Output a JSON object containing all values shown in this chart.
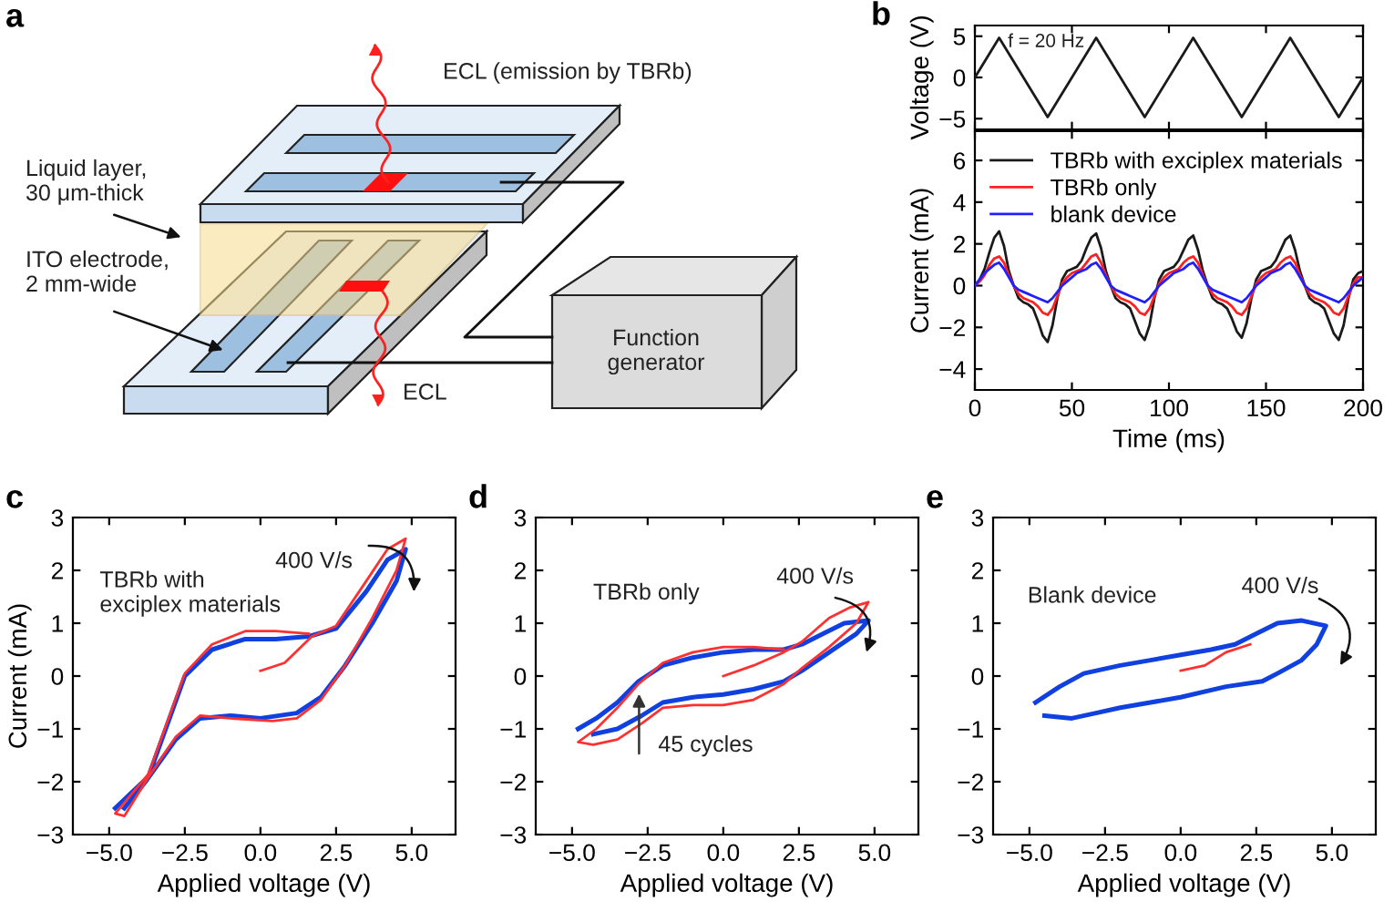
{
  "chart_data": [
    {
      "type": "other",
      "title": "a",
      "annotations": [
        "ECL (emission by TBRb)",
        "Liquid layer,\n30 μm-thick",
        "ITO electrode,\n2 mm-wide",
        "ECL",
        "Function\ngenerator"
      ]
    },
    {
      "type": "line",
      "title": "b",
      "ylabel": "Voltage (V)",
      "annotations": [
        "f = 20 Hz"
      ],
      "xlim": [
        0,
        200
      ],
      "xticks": [
        0,
        50,
        100,
        150,
        200
      ],
      "ylim": [
        -6.3,
        6.3
      ],
      "yticks": [
        {
          "value": -5,
          "label": "−5"
        },
        0,
        5
      ],
      "tick_labels": "y",
      "grid": false,
      "series": [
        {
          "color": "#1a1a1a",
          "x": [
            0,
            12.5,
            37.5,
            62.5,
            87.5,
            112.5,
            137.5,
            162.5,
            187.5,
            200
          ],
          "values": [
            0,
            4.8,
            -4.8,
            4.8,
            -4.8,
            4.8,
            -4.8,
            4.8,
            -4.8,
            0
          ]
        }
      ]
    },
    {
      "type": "line",
      "xlabel": "Time (ms)",
      "ylabel": "Current (mA)",
      "xlim": [
        0,
        200
      ],
      "xticks": [
        0,
        50,
        100,
        150,
        200
      ],
      "ylim": [
        -5,
        7.4
      ],
      "yticks": [
        {
          "value": -4,
          "label": "−4"
        },
        {
          "value": -2,
          "label": "−2"
        },
        0,
        2,
        4,
        6
      ],
      "grid": false,
      "legend": "top right",
      "x": [
        0,
        2.5,
        5,
        7.5,
        10,
        12.5,
        15,
        17.5,
        20,
        22.5,
        25,
        27.5,
        30,
        32.5,
        35,
        37.5,
        40,
        42.5,
        45,
        47.5,
        50,
        52.5,
        55,
        57.5,
        60,
        62.5,
        65,
        67.5,
        70,
        72.5,
        75,
        77.5,
        80,
        82.5,
        85,
        87.5,
        90,
        92.5,
        95,
        97.5,
        100,
        102.5,
        105,
        107.5,
        110,
        112.5,
        115,
        117.5,
        120,
        122.5,
        125,
        127.5,
        130,
        132.5,
        135,
        137.5,
        140,
        142.5,
        145,
        147.5,
        150,
        152.5,
        155,
        157.5,
        160,
        162.5,
        165,
        167.5,
        170,
        172.5,
        175,
        177.5,
        180,
        182.5,
        185,
        187.5,
        190,
        192.5,
        195,
        197.5,
        200
      ],
      "series": [
        {
          "name": "TBRb with exciplex materials",
          "color": "#1a1a1a",
          "values": [
            0.0,
            0.3,
            0.8,
            1.6,
            2.3,
            2.6,
            1.9,
            0.7,
            0.0,
            -0.6,
            -0.8,
            -0.9,
            -1.1,
            -1.7,
            -2.4,
            -2.7,
            -1.9,
            -0.6,
            0.3,
            0.7,
            0.8,
            0.9,
            1.2,
            1.8,
            2.3,
            2.5,
            1.8,
            0.7,
            0.0,
            -0.6,
            -0.8,
            -0.9,
            -1.1,
            -1.7,
            -2.3,
            -2.6,
            -1.9,
            -0.6,
            0.3,
            0.7,
            0.8,
            0.9,
            1.2,
            1.7,
            2.2,
            2.4,
            1.7,
            0.7,
            0.0,
            -0.6,
            -0.8,
            -0.9,
            -1.1,
            -1.6,
            -2.2,
            -2.5,
            -1.8,
            -0.6,
            0.3,
            0.7,
            0.8,
            0.9,
            1.2,
            1.7,
            2.2,
            2.4,
            1.7,
            0.7,
            0.0,
            -0.6,
            -0.8,
            -0.9,
            -1.1,
            -1.7,
            -2.3,
            -2.6,
            -1.9,
            -0.6,
            0.3,
            0.6,
            0.7
          ]
        },
        {
          "name": "TBRb only",
          "color": "#ff2020",
          "values": [
            0.0,
            0.2,
            0.5,
            1.0,
            1.3,
            1.4,
            1.1,
            0.5,
            0.0,
            -0.4,
            -0.6,
            -0.7,
            -0.8,
            -1.0,
            -1.3,
            -1.4,
            -1.1,
            -0.5,
            0.1,
            0.4,
            0.6,
            0.7,
            0.8,
            1.1,
            1.4,
            1.5,
            1.1,
            0.5,
            0.0,
            -0.4,
            -0.6,
            -0.7,
            -0.8,
            -1.0,
            -1.3,
            -1.4,
            -1.1,
            -0.5,
            0.1,
            0.4,
            0.6,
            0.7,
            0.8,
            1.1,
            1.3,
            1.4,
            1.1,
            0.5,
            0.0,
            -0.4,
            -0.6,
            -0.7,
            -0.8,
            -1.0,
            -1.3,
            -1.4,
            -1.1,
            -0.5,
            0.1,
            0.4,
            0.6,
            0.7,
            0.8,
            1.1,
            1.3,
            1.4,
            1.1,
            0.5,
            0.0,
            -0.4,
            -0.6,
            -0.7,
            -0.8,
            -1.0,
            -1.3,
            -1.4,
            -1.1,
            -0.5,
            0.1,
            0.4,
            0.4
          ]
        },
        {
          "name": "blank device",
          "color": "#2020ff",
          "values": [
            0.0,
            0.3,
            0.6,
            0.8,
            1.0,
            1.1,
            0.8,
            0.4,
            0.0,
            -0.2,
            -0.3,
            -0.4,
            -0.5,
            -0.6,
            -0.7,
            -0.8,
            -0.6,
            -0.3,
            0.0,
            0.2,
            0.4,
            0.6,
            0.7,
            0.8,
            1.0,
            1.1,
            0.8,
            0.4,
            0.0,
            -0.2,
            -0.3,
            -0.4,
            -0.5,
            -0.6,
            -0.7,
            -0.8,
            -0.6,
            -0.3,
            0.0,
            0.2,
            0.4,
            0.6,
            0.7,
            0.8,
            1.0,
            1.1,
            0.8,
            0.4,
            0.0,
            -0.2,
            -0.3,
            -0.4,
            -0.5,
            -0.6,
            -0.7,
            -0.8,
            -0.6,
            -0.3,
            0.0,
            0.2,
            0.4,
            0.6,
            0.7,
            0.8,
            1.0,
            1.1,
            0.8,
            0.4,
            0.0,
            -0.2,
            -0.3,
            -0.4,
            -0.5,
            -0.6,
            -0.7,
            -0.8,
            -0.6,
            -0.3,
            0.0,
            0.2,
            0.4
          ]
        }
      ]
    },
    {
      "type": "line",
      "title": "c",
      "xlabel": "Applied voltage (V)",
      "ylabel": "Current (mA)",
      "annotations": [
        "TBRb with\nexciplex materials",
        "400 V/s"
      ],
      "xlim": [
        -6.2,
        6.45
      ],
      "xticks": [
        {
          "value": -5,
          "label": "−5.0"
        },
        {
          "value": -2.5,
          "label": "−2.5"
        },
        {
          "value": 0,
          "label": "0.0"
        },
        {
          "value": 2.5,
          "label": "2.5"
        },
        {
          "value": 5,
          "label": "5.0"
        }
      ],
      "ylim": [
        -3,
        3
      ],
      "yticks": [
        {
          "value": -3,
          "label": "−3"
        },
        {
          "value": -2,
          "label": "−2"
        },
        {
          "value": -1,
          "label": "−1"
        },
        0,
        1,
        2,
        3
      ],
      "grid": false,
      "series": [
        {
          "color": "#ff3030",
          "x": [
            0,
            0.8,
            1.7,
            2.5,
            3.5,
            4.2,
            4.8,
            4.5,
            3.7,
            2.8,
            2.0,
            1.2,
            0.4,
            -1,
            -2,
            -2.8,
            -3.8,
            -4.5,
            -4.8,
            -3.7,
            -2.5,
            -1.6,
            -0.5,
            0.5,
            1.6
          ],
          "values": [
            0.1,
            0.25,
            0.75,
            0.95,
            1.8,
            2.4,
            2.6,
            2.0,
            1.1,
            0.2,
            -0.45,
            -0.8,
            -0.85,
            -0.8,
            -0.75,
            -1.15,
            -2.0,
            -2.65,
            -2.6,
            -1.85,
            0.05,
            0.6,
            0.85,
            0.85,
            0.8
          ]
        },
        {
          "color": "#1040e0",
          "x": [
            -4.8,
            -3.7,
            -2.5,
            -1.6,
            -0.5,
            0.5,
            1.6,
            2.5,
            3.5,
            4.2,
            4.8,
            4.5,
            3.7,
            2.8,
            2.0,
            1.2,
            0,
            -1,
            -2,
            -2.8,
            -3.8,
            -4.5
          ],
          "values": [
            -2.5,
            -1.9,
            0.0,
            0.5,
            0.7,
            0.7,
            0.75,
            0.9,
            1.6,
            2.2,
            2.4,
            1.8,
            1.0,
            0.2,
            -0.4,
            -0.7,
            -0.8,
            -0.75,
            -0.8,
            -1.2,
            -2.0,
            -2.5
          ]
        }
      ]
    },
    {
      "type": "line",
      "title": "d",
      "xlabel": "Applied voltage (V)",
      "annotations": [
        "TBRb only",
        "400 V/s",
        "45 cycles"
      ],
      "xlim": [
        -6.2,
        6.45
      ],
      "xticks": [
        {
          "value": -5,
          "label": "−5.0"
        },
        {
          "value": -2.5,
          "label": "−2.5"
        },
        {
          "value": 0,
          "label": "0.0"
        },
        {
          "value": 2.5,
          "label": "2.5"
        },
        {
          "value": 5,
          "label": "5.0"
        }
      ],
      "ylim": [
        -3,
        3
      ],
      "yticks": [
        {
          "value": -3,
          "label": "−3"
        },
        {
          "value": -2,
          "label": "−2"
        },
        {
          "value": -1,
          "label": "−1"
        },
        0,
        1,
        2,
        3
      ],
      "grid": false,
      "series": [
        {
          "color": "#ff3030",
          "x": [
            0,
            1,
            2,
            2.6,
            3.5,
            4.2,
            4.8,
            4.4,
            3.5,
            2.6,
            2,
            1,
            0,
            -1,
            -2,
            -2.7,
            -3.5,
            -4.3,
            -4.8,
            -4.2,
            -3.5,
            -2.8,
            -2,
            -1,
            0,
            1,
            2
          ],
          "values": [
            0,
            0.2,
            0.45,
            0.65,
            1.1,
            1.3,
            1.4,
            1.0,
            0.55,
            0.15,
            -0.15,
            -0.45,
            -0.55,
            -0.55,
            -0.6,
            -0.9,
            -1.2,
            -1.3,
            -1.25,
            -1.0,
            -0.6,
            -0.15,
            0.25,
            0.45,
            0.55,
            0.55,
            0.5
          ]
        },
        {
          "color": "#1040e0",
          "x": [
            -4.8,
            -4.2,
            -3.5,
            -2.8,
            -2,
            -1,
            0,
            1,
            2,
            2.6,
            3.3,
            4,
            4.8,
            4.4,
            3.5,
            2.6,
            2,
            1,
            0,
            -1,
            -2,
            -2.7,
            -3.5,
            -4.3
          ],
          "values": [
            -1.0,
            -0.8,
            -0.5,
            -0.1,
            0.2,
            0.35,
            0.45,
            0.5,
            0.5,
            0.6,
            0.8,
            1.0,
            1.05,
            0.8,
            0.45,
            0.1,
            -0.1,
            -0.25,
            -0.35,
            -0.4,
            -0.5,
            -0.75,
            -1.0,
            -1.1
          ]
        }
      ]
    },
    {
      "type": "line",
      "title": "e",
      "xlabel": "Applied voltage (V)",
      "annotations": [
        "Blank device",
        "400 V/s"
      ],
      "xlim": [
        -6.2,
        6.45
      ],
      "xticks": [
        {
          "value": -5,
          "label": "−5.0"
        },
        {
          "value": -2.5,
          "label": "−2.5"
        },
        {
          "value": 0,
          "label": "0.0"
        },
        {
          "value": 2.5,
          "label": "2.5"
        },
        {
          "value": 5,
          "label": "5.0"
        }
      ],
      "ylim": [
        -3,
        3
      ],
      "yticks": [
        {
          "value": -3,
          "label": "−3"
        },
        {
          "value": -2,
          "label": "−2"
        },
        {
          "value": -1,
          "label": "−1"
        },
        0,
        1,
        2,
        3
      ],
      "grid": false,
      "series": [
        {
          "color": "#ff3030",
          "x": [
            0,
            0.8,
            1.5,
            2.3
          ],
          "values": [
            0.1,
            0.2,
            0.45,
            0.6
          ]
        },
        {
          "color": "#1040e0",
          "x": [
            -4.8,
            -4,
            -3.2,
            -2,
            -1,
            0,
            1,
            1.8,
            2.5,
            3.2,
            4,
            4.8,
            4.5,
            4,
            3.2,
            2.7,
            1.5,
            0,
            -1,
            -2,
            -2.8,
            -3.6,
            -4.5
          ],
          "values": [
            -0.5,
            -0.2,
            0.05,
            0.2,
            0.3,
            0.4,
            0.5,
            0.6,
            0.8,
            1.0,
            1.05,
            0.95,
            0.6,
            0.3,
            0.05,
            -0.1,
            -0.2,
            -0.4,
            -0.5,
            -0.6,
            -0.7,
            -0.8,
            -0.75
          ]
        }
      ]
    }
  ]
}
